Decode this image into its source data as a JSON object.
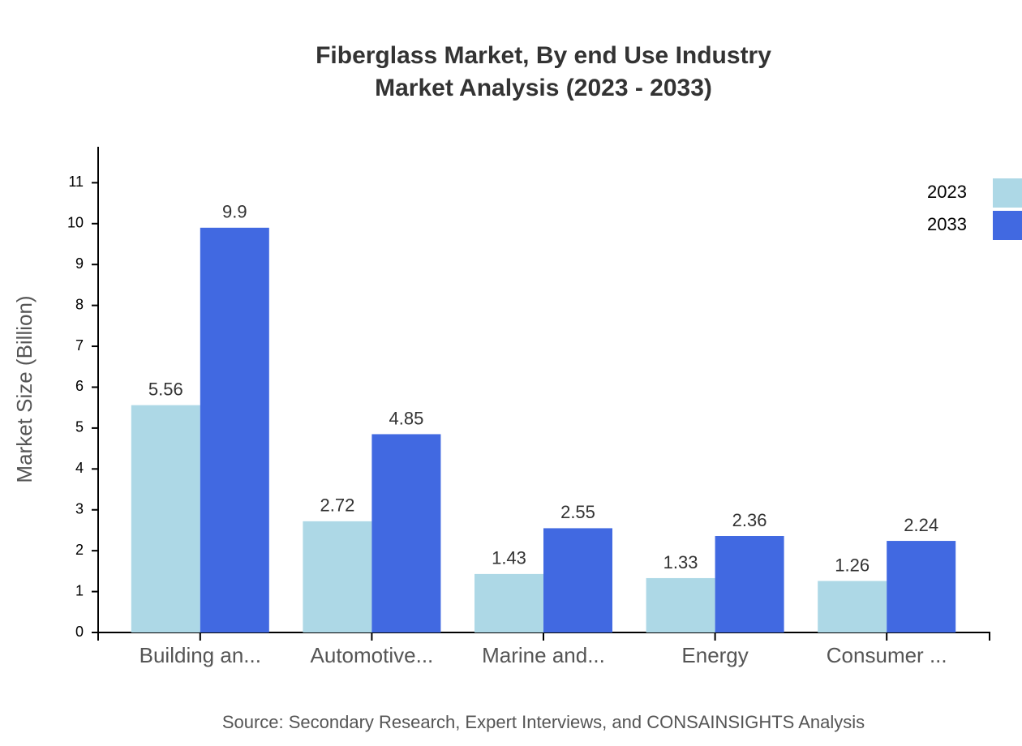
{
  "chart_data": {
    "type": "bar",
    "title": "Fiberglass Market, By end Use Industry",
    "subtitle": "Market Analysis (2023 - 2033)",
    "y_label": "Market Size (Billion)",
    "source": "Source: Secondary Research, Expert Interviews, and CONSAINSIGHTS Analysis",
    "categories": [
      "Building an...",
      "Automotive...",
      "Marine and...",
      "Energy",
      "Consumer ..."
    ],
    "series": [
      {
        "name": "2023",
        "color": "#add8e6",
        "values": [
          5.56,
          2.72,
          1.43,
          1.33,
          1.26
        ]
      },
      {
        "name": "2033",
        "color": "#4169e1",
        "values": [
          9.9,
          4.85,
          2.55,
          2.36,
          2.24
        ]
      }
    ],
    "ylim": [
      0,
      11.88
    ],
    "yticks": [
      0,
      1,
      2,
      3,
      4,
      5,
      6,
      7,
      8,
      9,
      10,
      11
    ],
    "legend": "top-right"
  }
}
